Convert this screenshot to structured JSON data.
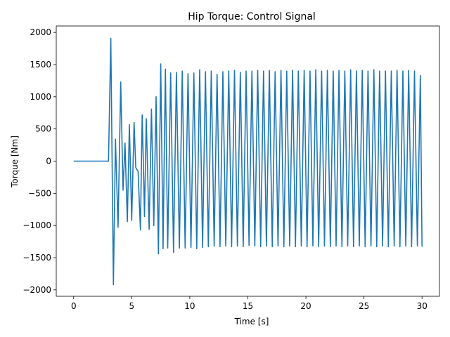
{
  "chart_data": {
    "type": "line",
    "title": "Hip Torque: Control Signal",
    "xlabel": "Time [s]",
    "ylabel": "Torque [Nm]",
    "xlim": [
      -1.5,
      31.5
    ],
    "ylim": [
      -2100,
      2100
    ],
    "xticks": [
      0,
      5,
      10,
      15,
      20,
      25,
      30
    ],
    "xtick_labels": [
      "0",
      "5",
      "10",
      "15",
      "20",
      "25",
      "30"
    ],
    "yticks": [
      -2000,
      -1500,
      -1000,
      -500,
      0,
      500,
      1000,
      1500,
      2000
    ],
    "ytick_labels": [
      "−2000",
      "−1500",
      "−1000",
      "−500",
      "0",
      "500",
      "1000",
      "1500",
      "2000"
    ],
    "grid": false,
    "series": [
      {
        "name": "Hip Torque",
        "color": "#1f77b4",
        "x": [
          0,
          3.0,
          3.2,
          3.42,
          3.6,
          3.82,
          4.05,
          4.25,
          4.42,
          4.62,
          4.8,
          5.0,
          5.2,
          5.35,
          5.55,
          5.75,
          5.9,
          6.0,
          6.1,
          6.25,
          6.5,
          6.7,
          6.9,
          7.1,
          7.3,
          7.5,
          7.7,
          7.9,
          8.1,
          8.35,
          8.6,
          8.85,
          9.1,
          9.35,
          9.6,
          9.85,
          10.1,
          10.35,
          10.6,
          10.85,
          11.1,
          11.35,
          11.6,
          11.85,
          12.1,
          12.35,
          12.6,
          12.85,
          13.1,
          13.35,
          13.6,
          13.85,
          14.1,
          14.35,
          14.6,
          14.85,
          15.1,
          15.35,
          15.6,
          15.85,
          16.1,
          16.35,
          16.6,
          16.85,
          17.1,
          17.35,
          17.6,
          17.85,
          18.1,
          18.35,
          18.6,
          18.85,
          19.1,
          19.35,
          19.6,
          19.85,
          20.1,
          20.35,
          20.6,
          20.85,
          21.1,
          21.35,
          21.6,
          21.85,
          22.1,
          22.35,
          22.6,
          22.85,
          23.1,
          23.35,
          23.6,
          23.85,
          24.1,
          24.35,
          24.6,
          24.85,
          25.1,
          25.35,
          25.6,
          25.85,
          26.1,
          26.35,
          26.6,
          26.85,
          27.1,
          27.35,
          27.6,
          27.85,
          28.1,
          28.35,
          28.6,
          28.85,
          29.1,
          29.35,
          29.6,
          29.85,
          30.0
        ],
        "y": [
          0,
          0,
          1910,
          -1920,
          340,
          -1030,
          1230,
          -450,
          280,
          -940,
          570,
          -920,
          600,
          -100,
          -160,
          -1070,
          720,
          -30,
          -860,
          660,
          -1060,
          810,
          -1000,
          1000,
          -1440,
          1510,
          -1360,
          1430,
          -1350,
          1370,
          -1420,
          1380,
          -1350,
          1400,
          -1350,
          1360,
          -1340,
          1370,
          -1360,
          1420,
          -1340,
          1390,
          -1330,
          1400,
          -1320,
          1350,
          -1330,
          1390,
          -1320,
          1400,
          -1330,
          1410,
          -1320,
          1380,
          -1330,
          1400,
          -1310,
          1400,
          -1320,
          1410,
          -1330,
          1400,
          -1320,
          1410,
          -1330,
          1390,
          -1320,
          1410,
          -1330,
          1400,
          -1320,
          1410,
          -1330,
          1400,
          -1320,
          1410,
          -1330,
          1400,
          -1320,
          1420,
          -1330,
          1400,
          -1320,
          1410,
          -1330,
          1400,
          -1320,
          1410,
          -1330,
          1400,
          -1320,
          1420,
          -1330,
          1400,
          -1320,
          1410,
          -1330,
          1400,
          -1320,
          1420,
          -1330,
          1400,
          -1320,
          1400,
          -1330,
          1400,
          -1320,
          1410,
          -1330,
          1400,
          -1320,
          1410,
          -1330,
          1400,
          -1320,
          1330,
          -1330
        ]
      }
    ]
  }
}
